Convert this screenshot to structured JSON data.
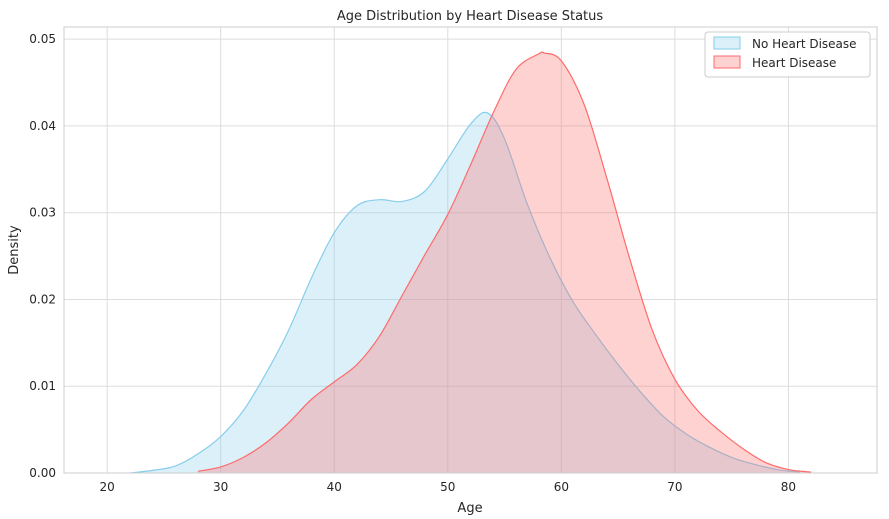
{
  "chart_data": {
    "type": "area",
    "title": "Age Distribution by Heart Disease Status",
    "xlabel": "Age",
    "ylabel": "Density",
    "xlim": [
      16.2,
      87.8
    ],
    "ylim": [
      0,
      0.0514
    ],
    "x_ticks": [
      20,
      30,
      40,
      50,
      60,
      70,
      80
    ],
    "x_tick_labels": [
      "20",
      "30",
      "40",
      "50",
      "60",
      "70",
      "80"
    ],
    "y_ticks": [
      0,
      0.01,
      0.02,
      0.03,
      0.04,
      0.05
    ],
    "y_tick_labels": [
      "0.00",
      "0.01",
      "0.02",
      "0.03",
      "0.04",
      "0.05"
    ],
    "grid": true,
    "legend_position": "top-right",
    "series": [
      {
        "name": "No Heart Disease",
        "color": "#87CEEB",
        "x": [
          22,
          24,
          26,
          28,
          30,
          32,
          34,
          36,
          38,
          40,
          42,
          44,
          46,
          48,
          50,
          52,
          53.5,
          55,
          57,
          59,
          61,
          63,
          65,
          67,
          69,
          71,
          73,
          75,
          77,
          79,
          81
        ],
        "y": [
          0.0,
          0.0003,
          0.0008,
          0.0022,
          0.0042,
          0.0072,
          0.0115,
          0.0165,
          0.0225,
          0.0277,
          0.0308,
          0.0315,
          0.0313,
          0.0325,
          0.0362,
          0.0402,
          0.0415,
          0.0385,
          0.031,
          0.0248,
          0.0198,
          0.016,
          0.0125,
          0.0093,
          0.0065,
          0.0045,
          0.003,
          0.0018,
          0.001,
          0.0004,
          0.0001
        ]
      },
      {
        "name": "Heart Disease",
        "color": "#FF6B6B",
        "x": [
          28,
          30,
          32,
          34,
          36,
          38,
          40,
          42,
          44,
          46,
          48,
          50,
          52,
          54,
          56,
          58,
          58.5,
          60,
          62,
          64,
          66,
          68,
          70,
          72,
          74,
          76,
          78,
          80,
          82
        ],
        "y": [
          0.0002,
          0.0007,
          0.0018,
          0.0035,
          0.0058,
          0.0085,
          0.0105,
          0.0125,
          0.0158,
          0.0205,
          0.0252,
          0.0298,
          0.0355,
          0.0415,
          0.0465,
          0.0483,
          0.0484,
          0.0475,
          0.0425,
          0.034,
          0.0248,
          0.0165,
          0.0108,
          0.0072,
          0.0048,
          0.0028,
          0.0012,
          0.0004,
          0.0001
        ]
      }
    ]
  }
}
